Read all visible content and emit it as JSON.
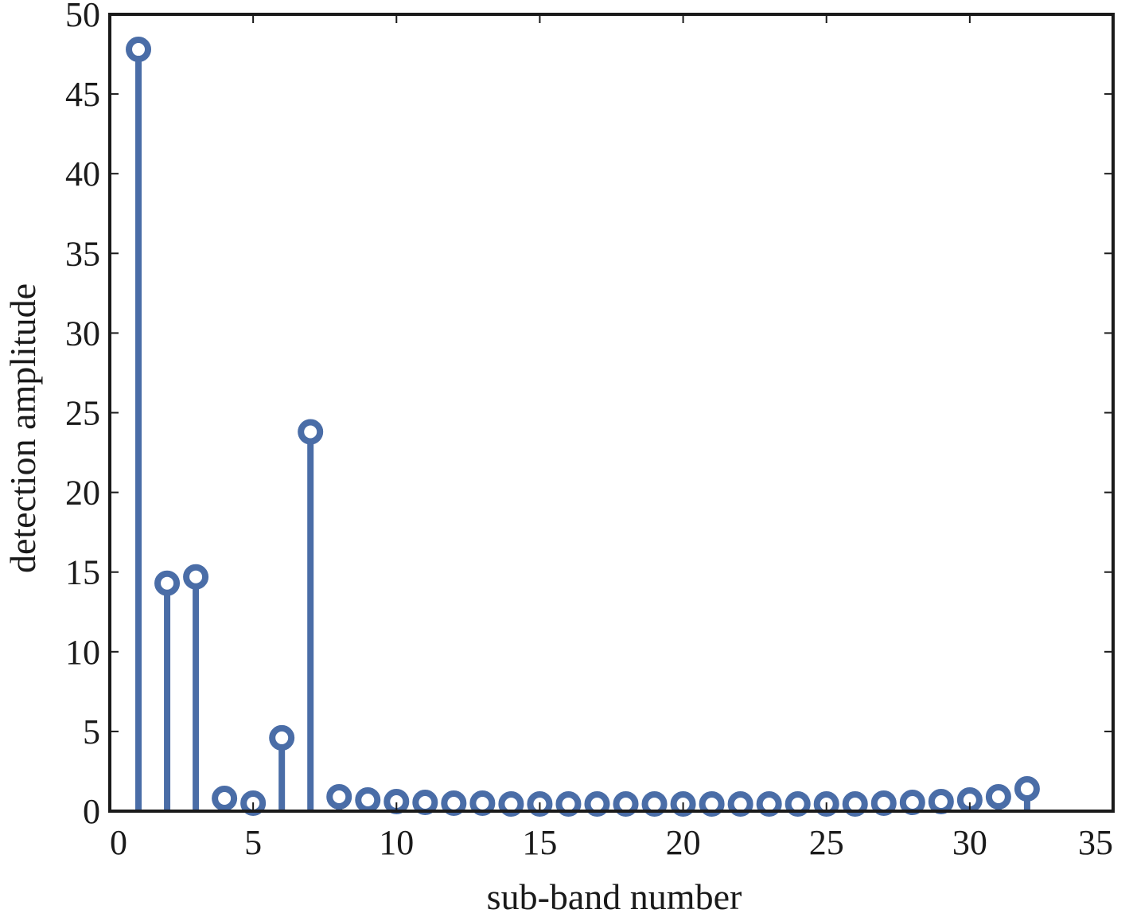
{
  "chart_data": {
    "type": "stem",
    "title": "",
    "xlabel": "sub-band number",
    "ylabel": "detection amplitude",
    "xlim": [
      0,
      35
    ],
    "ylim": [
      0,
      50
    ],
    "xticks": [
      0,
      5,
      10,
      15,
      20,
      25,
      30,
      35
    ],
    "yticks": [
      0,
      5,
      10,
      15,
      20,
      25,
      30,
      35,
      40,
      45,
      50
    ],
    "grid": false,
    "series": [
      {
        "color": "#4a6da7",
        "marker": "circle",
        "x": [
          1,
          2,
          3,
          4,
          5,
          6,
          7,
          8,
          9,
          10,
          11,
          12,
          13,
          14,
          15,
          16,
          17,
          18,
          19,
          20,
          21,
          22,
          23,
          24,
          25,
          26,
          27,
          28,
          29,
          30,
          31,
          32
        ],
        "values": [
          47.8,
          14.3,
          14.7,
          0.8,
          0.5,
          4.6,
          23.8,
          0.9,
          0.7,
          0.6,
          0.55,
          0.5,
          0.5,
          0.45,
          0.45,
          0.45,
          0.45,
          0.45,
          0.45,
          0.45,
          0.45,
          0.45,
          0.45,
          0.45,
          0.45,
          0.45,
          0.5,
          0.55,
          0.6,
          0.7,
          0.9,
          1.4
        ]
      }
    ]
  }
}
